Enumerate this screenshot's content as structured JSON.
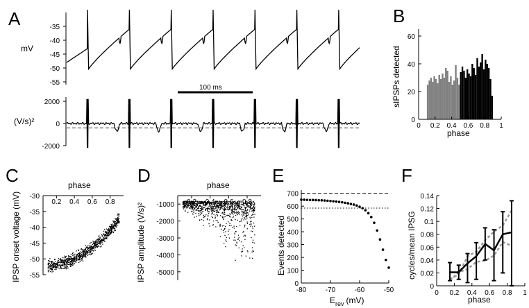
{
  "figure": {
    "panel_labels": [
      "A",
      "B",
      "C",
      "D",
      "E",
      "F"
    ]
  },
  "chart_data": [
    {
      "panel": "A",
      "type": "line",
      "title": "",
      "traces": [
        {
          "ylabel": "mV",
          "ylim": [
            -55,
            -30
          ],
          "yticks": [
            -35,
            -40,
            -45,
            -50,
            -55
          ],
          "spike_times_ms": [
            30,
            90,
            150,
            210,
            270,
            330,
            390
          ],
          "trough_mV": -51,
          "peak_mV": -29
        },
        {
          "ylabel": "(V/s)²",
          "ylim": [
            -2000,
            2000
          ],
          "yticks": [
            2000,
            0,
            -2000
          ],
          "threshold": -400,
          "threshold_style": "dashed gray"
        }
      ],
      "scalebar": {
        "label": "100 ms",
        "length_ms": 100
      }
    },
    {
      "panel": "B",
      "type": "bar",
      "xlabel": "phase",
      "ylabel": "sIPSPs detected",
      "xlim": [
        0,
        1
      ],
      "ylim": [
        0,
        65
      ],
      "xticks": [
        0,
        0.2,
        0.4,
        0.6,
        0.8,
        1
      ],
      "yticks": [
        0,
        20,
        40,
        60
      ],
      "xtick_labels": [
        "0",
        "0.2",
        "0.4",
        "0.6",
        "0.8",
        "1"
      ],
      "bin_width": 0.02,
      "series": [
        {
          "color": "#808080",
          "x": [
            0.11,
            0.13,
            0.15,
            0.17,
            0.19,
            0.21,
            0.23,
            0.25,
            0.27,
            0.29,
            0.31,
            0.33,
            0.35,
            0.37,
            0.39,
            0.41,
            0.43,
            0.45,
            0.47,
            0.49
          ],
          "values": [
            25,
            28,
            30,
            27,
            31,
            29,
            26,
            32,
            29,
            33,
            30,
            37,
            35,
            27,
            31,
            25,
            28,
            39,
            30,
            25
          ]
        },
        {
          "color": "#000000",
          "x": [
            0.51,
            0.53,
            0.55,
            0.57,
            0.59,
            0.61,
            0.63,
            0.65,
            0.67,
            0.69,
            0.71,
            0.73,
            0.75,
            0.77,
            0.79,
            0.81,
            0.83,
            0.85,
            0.87,
            0.89
          ],
          "values": [
            34,
            38,
            35,
            30,
            36,
            33,
            31,
            40,
            37,
            32,
            44,
            38,
            41,
            47,
            36,
            43,
            40,
            37,
            29,
            17
          ]
        }
      ]
    },
    {
      "panel": "C",
      "type": "scatter",
      "xlabel": "phase",
      "ylabel": "IPSP onset voltage (mV)",
      "xlim": [
        0.05,
        0.95
      ],
      "ylim": [
        -55,
        -30
      ],
      "xticks": [
        0.2,
        0.4,
        0.6,
        0.8
      ],
      "yticks": [
        -55,
        -50,
        -45,
        -40,
        -35,
        -30
      ],
      "x_axis_position": "top",
      "trend": "onset voltage rises from about -52 mV at phase 0.1 to about -37 mV at phase 0.9"
    },
    {
      "panel": "D",
      "type": "scatter",
      "xlabel": "phase",
      "ylabel": "IPSP amplitude (V/s)²",
      "xlim": [
        0.05,
        0.95
      ],
      "ylim": [
        -5500,
        -500
      ],
      "xticks": [
        0.2,
        0.4,
        0.6,
        0.8
      ],
      "yticks": [
        -1000,
        -2000,
        -3000,
        -4000,
        -5000
      ],
      "x_axis_position": "top",
      "trend": "amplitudes cluster near -1000 with a growing negative tail at late phase"
    },
    {
      "panel": "E",
      "type": "scatter",
      "xlabel": "E",
      "xlabel_subscript": "rev",
      "xlabel_units": "(mV)",
      "ylabel": "Events detected",
      "xlim": [
        -80,
        -50
      ],
      "ylim": [
        0,
        720
      ],
      "xticks": [
        -80,
        -70,
        -60,
        -50
      ],
      "yticks": [
        0,
        100,
        200,
        300,
        400,
        500,
        600,
        700
      ],
      "x": [
        -80,
        -79,
        -78,
        -77,
        -76,
        -75,
        -74,
        -73,
        -72,
        -71,
        -70,
        -69,
        -68,
        -67,
        -66,
        -65,
        -64,
        -63,
        -62,
        -61,
        -60,
        -59,
        -58,
        -57,
        -56,
        -55,
        -54,
        -53,
        -52,
        -51,
        -50
      ],
      "values": [
        650,
        650,
        649,
        648,
        648,
        647,
        646,
        645,
        644,
        642,
        640,
        638,
        636,
        633,
        630,
        626,
        622,
        617,
        612,
        605,
        595,
        584,
        568,
        545,
        515,
        470,
        410,
        340,
        260,
        180,
        120
      ],
      "reference_lines": [
        {
          "y": 700,
          "style": "dashed"
        },
        {
          "y": 585,
          "style": "dotted"
        }
      ]
    },
    {
      "panel": "F",
      "type": "line",
      "xlabel": "phase",
      "ylabel": "cycles/mean IPSG",
      "xlim": [
        0,
        1
      ],
      "ylim": [
        0,
        0.14
      ],
      "xticks": [
        0,
        0.2,
        0.4,
        0.6,
        0.8,
        1
      ],
      "yticks": [
        0,
        0.02,
        0.04,
        0.06,
        0.08,
        0.1,
        0.12,
        0.14
      ],
      "xtick_labels": [
        "0",
        "0.2",
        "0.4",
        "0.6",
        "0.8",
        "1"
      ],
      "ytick_labels": [
        "0",
        "0.02",
        "0.04",
        "0.06",
        "0.08",
        "0.1",
        "0.12",
        "0.14"
      ],
      "x": [
        0.15,
        0.25,
        0.35,
        0.45,
        0.55,
        0.65,
        0.75,
        0.85
      ],
      "values": [
        0.021,
        0.021,
        0.035,
        0.046,
        0.065,
        0.055,
        0.08,
        0.083
      ],
      "err_low": [
        0.008,
        0.01,
        0.005,
        0.01,
        0.04,
        0.008,
        0.02,
        0.0
      ],
      "err_high": [
        0.036,
        0.032,
        0.05,
        0.067,
        0.09,
        0.087,
        0.115,
        0.132
      ],
      "series": [
        {
          "style": "dashed gray",
          "values": [
            0.01,
            0.018,
            0.046,
            0.053,
            0.071,
            0.084,
            0.094,
            0.117
          ]
        },
        {
          "style": "dashed gray",
          "values": [
            0.008,
            0.021,
            0.026,
            0.037,
            0.039,
            0.047,
            0.068,
            0.062
          ]
        }
      ]
    }
  ]
}
